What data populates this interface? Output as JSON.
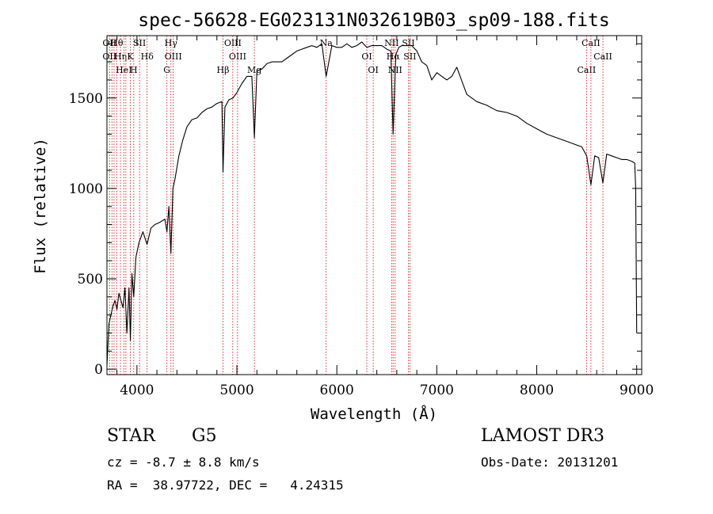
{
  "chart_data": {
    "type": "line",
    "title": "spec-56628-EG023131N032619B03_sp09-188.fits",
    "xlabel": "Wavelength (Å)",
    "ylabel": "Flux (relative)",
    "xlim": [
      3700,
      9050
    ],
    "ylim": [
      -30,
      1845
    ],
    "x_ticks": [
      4000,
      5000,
      6000,
      7000,
      8000,
      9000
    ],
    "y_ticks": [
      0,
      500,
      1000,
      1500
    ],
    "x_tick_labels": [
      "4000",
      "5000",
      "6000",
      "7000",
      "8000",
      "9000"
    ],
    "y_tick_labels": [
      "0",
      "500",
      "1000",
      "1500"
    ],
    "grid": false,
    "series": [
      {
        "x": [
          3700,
          3720,
          3740,
          3760,
          3780,
          3800,
          3820,
          3840,
          3860,
          3880,
          3900,
          3920,
          3935,
          3950,
          3968,
          3990,
          4020,
          4060,
          4101,
          4140,
          4180,
          4220,
          4250,
          4280,
          4300,
          4320,
          4340,
          4360,
          4380,
          4420,
          4460,
          4500,
          4550,
          4600,
          4650,
          4700,
          4750,
          4800,
          4850,
          4861,
          4880,
          4920,
          4960,
          5000,
          5050,
          5100,
          5150,
          5175,
          5200,
          5250,
          5300,
          5350,
          5400,
          5450,
          5500,
          5550,
          5600,
          5650,
          5700,
          5750,
          5800,
          5850,
          5893,
          5950,
          6000,
          6050,
          6100,
          6150,
          6200,
          6250,
          6300,
          6350,
          6400,
          6450,
          6500,
          6540,
          6563,
          6590,
          6620,
          6650,
          6700,
          6750,
          6800,
          6850,
          6900,
          6950,
          7000,
          7050,
          7100,
          7150,
          7200,
          7300,
          7400,
          7500,
          7600,
          7700,
          7800,
          7900,
          8000,
          8100,
          8200,
          8300,
          8400,
          8450,
          8500,
          8542,
          8580,
          8620,
          8662,
          8700,
          8750,
          8800,
          8850,
          8900,
          8950,
          8980,
          8990,
          9000
        ],
        "y": [
          20,
          250,
          300,
          350,
          380,
          330,
          420,
          380,
          340,
          450,
          200,
          450,
          160,
          530,
          400,
          620,
          700,
          760,
          690,
          780,
          800,
          810,
          820,
          830,
          760,
          900,
          640,
          1000,
          1050,
          1180,
          1270,
          1340,
          1380,
          1390,
          1420,
          1440,
          1450,
          1470,
          1480,
          1090,
          1450,
          1490,
          1500,
          1530,
          1580,
          1620,
          1620,
          1280,
          1650,
          1660,
          1690,
          1700,
          1700,
          1700,
          1720,
          1740,
          1760,
          1770,
          1780,
          1790,
          1780,
          1800,
          1620,
          1790,
          1780,
          1780,
          1800,
          1780,
          1790,
          1810,
          1780,
          1790,
          1790,
          1790,
          1770,
          1760,
          1300,
          1740,
          1780,
          1790,
          1790,
          1790,
          1760,
          1700,
          1680,
          1600,
          1640,
          1620,
          1600,
          1620,
          1670,
          1520,
          1480,
          1460,
          1430,
          1420,
          1400,
          1360,
          1330,
          1300,
          1280,
          1260,
          1240,
          1230,
          1180,
          1020,
          1180,
          1170,
          1030,
          1190,
          1180,
          1170,
          1160,
          1160,
          1150,
          1140,
          1000,
          200
        ]
      }
    ],
    "lines": [
      {
        "x": 3726,
        "labels": [
          "OII",
          "OII"
        ]
      },
      {
        "x": 3750,
        "labels": [
          ""
        ]
      },
      {
        "x": 3771,
        "labels": [
          ""
        ]
      },
      {
        "x": 3798,
        "labels": [
          "Hθ"
        ]
      },
      {
        "x": 3835,
        "labels": [
          "Hη"
        ]
      },
      {
        "x": 3869,
        "labels": [
          "HeI"
        ]
      },
      {
        "x": 3889,
        "labels": [
          ""
        ]
      },
      {
        "x": 3934,
        "labels": [
          "K"
        ]
      },
      {
        "x": 3968,
        "labels": [
          "H"
        ]
      },
      {
        "x": 4026,
        "labels": [
          "SII"
        ]
      },
      {
        "x": 4102,
        "labels": [
          "Hδ"
        ]
      },
      {
        "x": 4300,
        "labels": [
          "G"
        ]
      },
      {
        "x": 4340,
        "labels": [
          "Hγ"
        ]
      },
      {
        "x": 4363,
        "labels": [
          "OIII"
        ]
      },
      {
        "x": 4861,
        "labels": [
          "Hβ"
        ]
      },
      {
        "x": 4959,
        "labels": [
          "OIII"
        ]
      },
      {
        "x": 5007,
        "labels": [
          "OIII"
        ]
      },
      {
        "x": 5175,
        "labels": [
          "Mg"
        ]
      },
      {
        "x": 5893,
        "labels": [
          "Na"
        ]
      },
      {
        "x": 6300,
        "labels": [
          "OI"
        ]
      },
      {
        "x": 6364,
        "labels": [
          "OI"
        ]
      },
      {
        "x": 6548,
        "labels": [
          "NII"
        ]
      },
      {
        "x": 6563,
        "labels": [
          "Hα"
        ]
      },
      {
        "x": 6583,
        "labels": [
          "NII"
        ]
      },
      {
        "x": 6716,
        "labels": [
          "SII"
        ]
      },
      {
        "x": 6731,
        "labels": [
          "SII"
        ]
      },
      {
        "x": 8498,
        "labels": [
          "CaII"
        ]
      },
      {
        "x": 8542,
        "labels": [
          "CaII"
        ]
      },
      {
        "x": 8662,
        "labels": [
          "CaII"
        ]
      }
    ]
  },
  "footer": {
    "object_class": "STAR",
    "subclass": "G5",
    "survey": "LAMOST DR3",
    "cz": "cz = -8.7 ± 8.8 km/s",
    "obs_date": "Obs-Date: 20131201",
    "coords": "RA =  38.97722, DEC =   4.24315"
  }
}
